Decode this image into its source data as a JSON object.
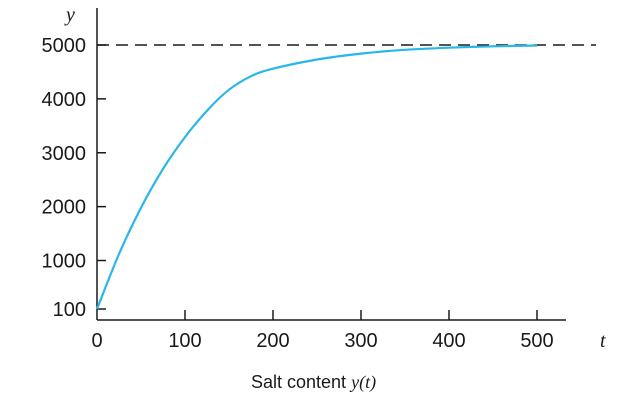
{
  "chart_data": {
    "type": "line",
    "ylabel": "y",
    "xlabel": "t",
    "caption": {
      "text": "Salt content ",
      "var": "y",
      "arg": "(t)"
    },
    "x_ticks": [
      0,
      100,
      200,
      300,
      400,
      500
    ],
    "x_tick_labels": [
      "0",
      "100",
      "200",
      "300",
      "400",
      "500"
    ],
    "y_ticks": [
      100,
      1000,
      2000,
      3000,
      4000,
      5000
    ],
    "y_tick_labels": [
      "100",
      "1000",
      "2000",
      "3000",
      "4000",
      "5000"
    ],
    "xlim": [
      0,
      560
    ],
    "ylim": [
      100,
      5000
    ],
    "grid": false,
    "asymptote": {
      "y": 5000,
      "style": "dashed"
    },
    "series": [
      {
        "color": "#29b6e8",
        "x": [
          0,
          25,
          50,
          75,
          100,
          125,
          150,
          175,
          200,
          250,
          300,
          350,
          400,
          450,
          500
        ],
        "y": [
          100,
          1120,
          1980,
          2700,
          3290,
          3780,
          4170,
          4420,
          4560,
          4730,
          4840,
          4910,
          4950,
          4975,
          4990
        ]
      }
    ]
  }
}
